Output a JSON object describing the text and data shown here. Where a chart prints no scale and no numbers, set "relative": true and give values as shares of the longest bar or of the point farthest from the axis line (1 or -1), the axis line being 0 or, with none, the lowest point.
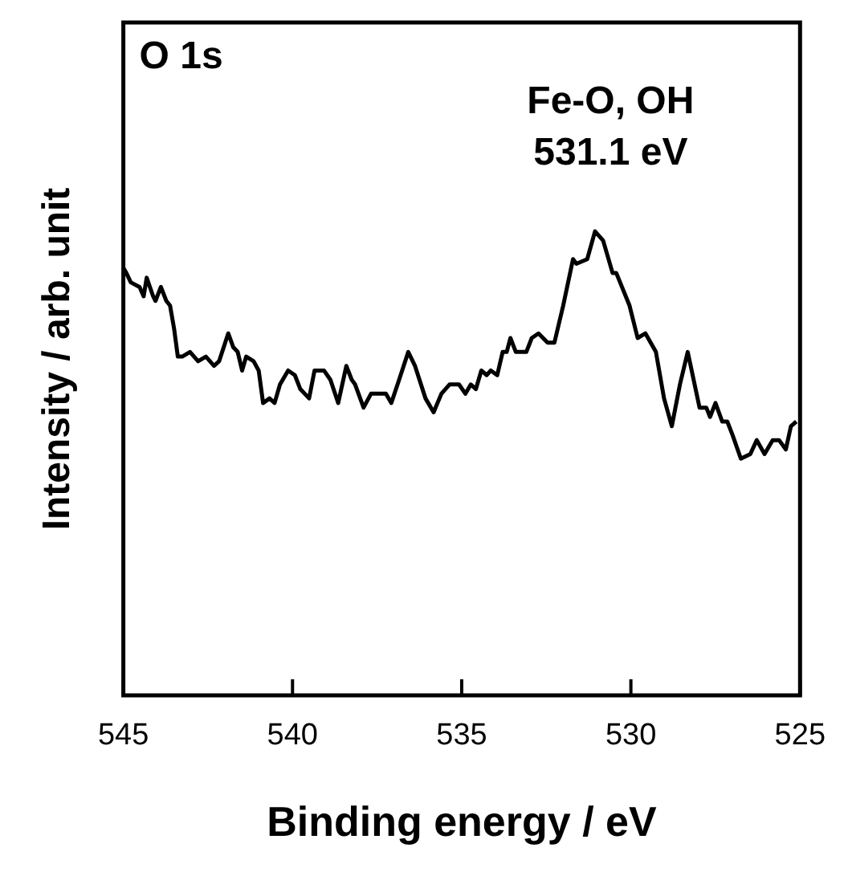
{
  "chart_data": {
    "type": "line",
    "relative": true,
    "xlabel": "Binding energy / eV",
    "ylabel": "Intensity / arb. unit",
    "xlim": [
      545,
      525
    ],
    "xticks": [
      545,
      540,
      535,
      530,
      525
    ],
    "tick_labels": "x",
    "grid": false,
    "legend": false,
    "marker": "none",
    "line_style": "solid",
    "annotations": [
      "O 1s",
      "Fe-O, OH",
      "531.1 eV"
    ],
    "series": [
      {
        "color": "#000000",
        "x": [
          544.99,
          544.91,
          544.78,
          544.52,
          544.4,
          544.31,
          544.12,
          544.05,
          543.89,
          543.73,
          543.62,
          543.5,
          543.39,
          543.26,
          543.03,
          542.79,
          542.56,
          542.32,
          542.17,
          541.9,
          541.75,
          541.62,
          541.49,
          541.37,
          541.15,
          541.0,
          540.87,
          540.68,
          540.53,
          540.37,
          540.13,
          539.93,
          539.77,
          539.51,
          539.35,
          539.07,
          538.88,
          538.65,
          538.41,
          538.25,
          538.15,
          537.9,
          537.68,
          537.39,
          537.24,
          537.08,
          536.85,
          536.58,
          536.38,
          536.07,
          535.83,
          535.6,
          535.36,
          535.08,
          534.89,
          534.73,
          534.58,
          534.42,
          534.26,
          534.14,
          533.95,
          533.79,
          533.67,
          533.56,
          533.4,
          533.09,
          532.93,
          532.73,
          532.46,
          532.26,
          532.0,
          531.71,
          531.61,
          531.29,
          531.06,
          530.82,
          530.54,
          530.43,
          530.04,
          529.8,
          529.57,
          529.26,
          529.02,
          528.79,
          528.55,
          528.32,
          527.97,
          527.77,
          527.66,
          527.5,
          527.3,
          527.15,
          526.99,
          526.75,
          526.47,
          526.28,
          526.05,
          525.81,
          525.62,
          525.42,
          525.27,
          525.11
        ],
        "values": [
          0.92,
          0.91,
          0.89,
          0.88,
          0.86,
          0.9,
          0.86,
          0.85,
          0.88,
          0.85,
          0.84,
          0.79,
          0.73,
          0.73,
          0.74,
          0.72,
          0.73,
          0.71,
          0.72,
          0.78,
          0.75,
          0.74,
          0.7,
          0.73,
          0.72,
          0.7,
          0.63,
          0.64,
          0.63,
          0.67,
          0.7,
          0.69,
          0.66,
          0.64,
          0.7,
          0.7,
          0.68,
          0.63,
          0.71,
          0.68,
          0.67,
          0.62,
          0.65,
          0.65,
          0.65,
          0.63,
          0.68,
          0.74,
          0.71,
          0.64,
          0.61,
          0.65,
          0.67,
          0.67,
          0.65,
          0.67,
          0.66,
          0.7,
          0.69,
          0.7,
          0.69,
          0.74,
          0.74,
          0.77,
          0.74,
          0.74,
          0.77,
          0.78,
          0.76,
          0.76,
          0.84,
          0.94,
          0.93,
          0.94,
          1.0,
          0.98,
          0.91,
          0.91,
          0.84,
          0.77,
          0.78,
          0.74,
          0.64,
          0.58,
          0.67,
          0.74,
          0.62,
          0.62,
          0.6,
          0.63,
          0.59,
          0.59,
          0.56,
          0.51,
          0.52,
          0.55,
          0.52,
          0.55,
          0.55,
          0.53,
          0.58,
          0.59
        ]
      }
    ]
  }
}
